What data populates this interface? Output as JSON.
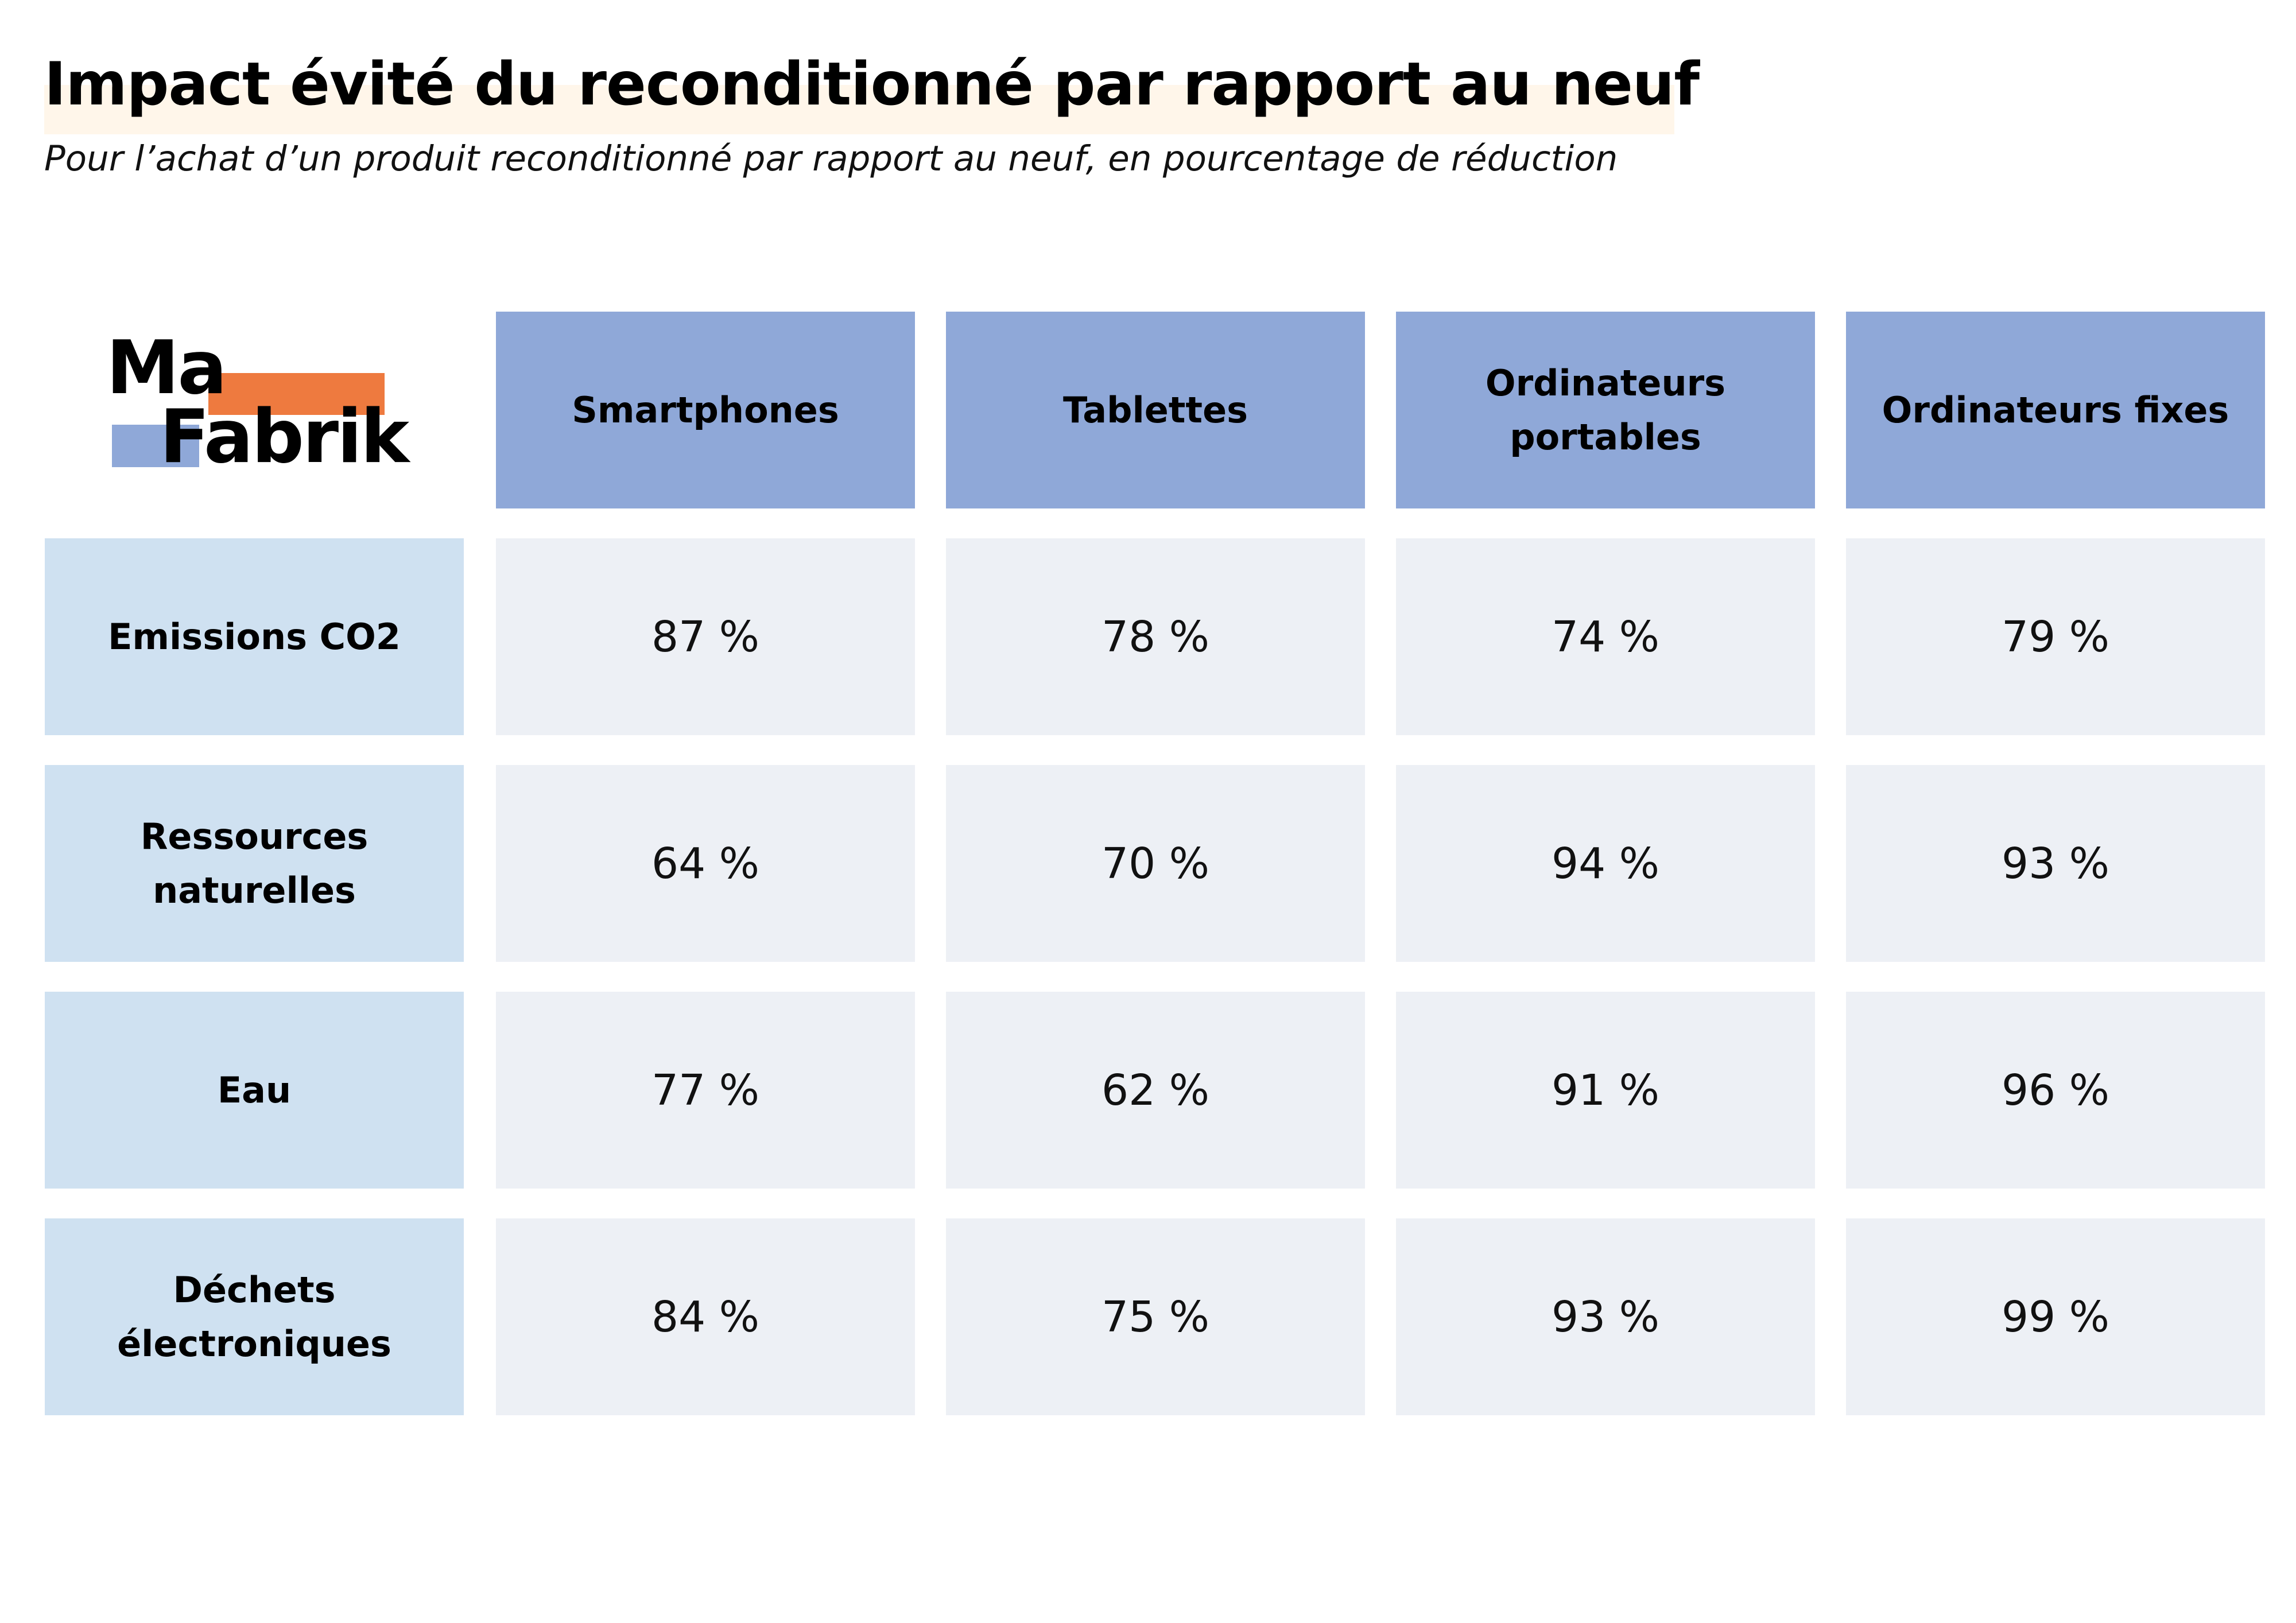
{
  "title": "Impact évité du reconditionné par rapport au neuf",
  "subtitle": "Pour l’achat d’un produit reconditionné par rapport au neuf, en pourcentage de réduction",
  "logo": {
    "line1": "Ma",
    "line2": "Fabrik",
    "accent_orange": "#ee7a3f",
    "accent_blue": "#8fa8d8"
  },
  "colors": {
    "column_header_bg": "#8fa8d8",
    "row_header_bg": "#cfe1f1",
    "value_cell_bg": "#edf0f5",
    "title_highlight": "#fff6ea"
  },
  "chart_data": {
    "type": "table",
    "title": "Impact évité du reconditionné par rapport au neuf",
    "subtitle": "Pour l’achat d’un produit reconditionné par rapport au neuf, en pourcentage de réduction",
    "columns": [
      "Smartphones",
      "Tablettes",
      "Ordinateurs portables",
      "Ordinateurs fixes"
    ],
    "rows": [
      {
        "label": "Emissions CO2",
        "values": [
          "87 %",
          "78 %",
          "74 %",
          "79 %"
        ]
      },
      {
        "label": "Ressources naturelles",
        "values": [
          "64 %",
          "70 %",
          "94 %",
          "93 %"
        ]
      },
      {
        "label": "Eau",
        "values": [
          "77 %",
          "62 %",
          "91 %",
          "96 %"
        ]
      },
      {
        "label": "Déchets électroniques",
        "values": [
          "84 %",
          "75 %",
          "93 %",
          "99 %"
        ]
      }
    ]
  }
}
